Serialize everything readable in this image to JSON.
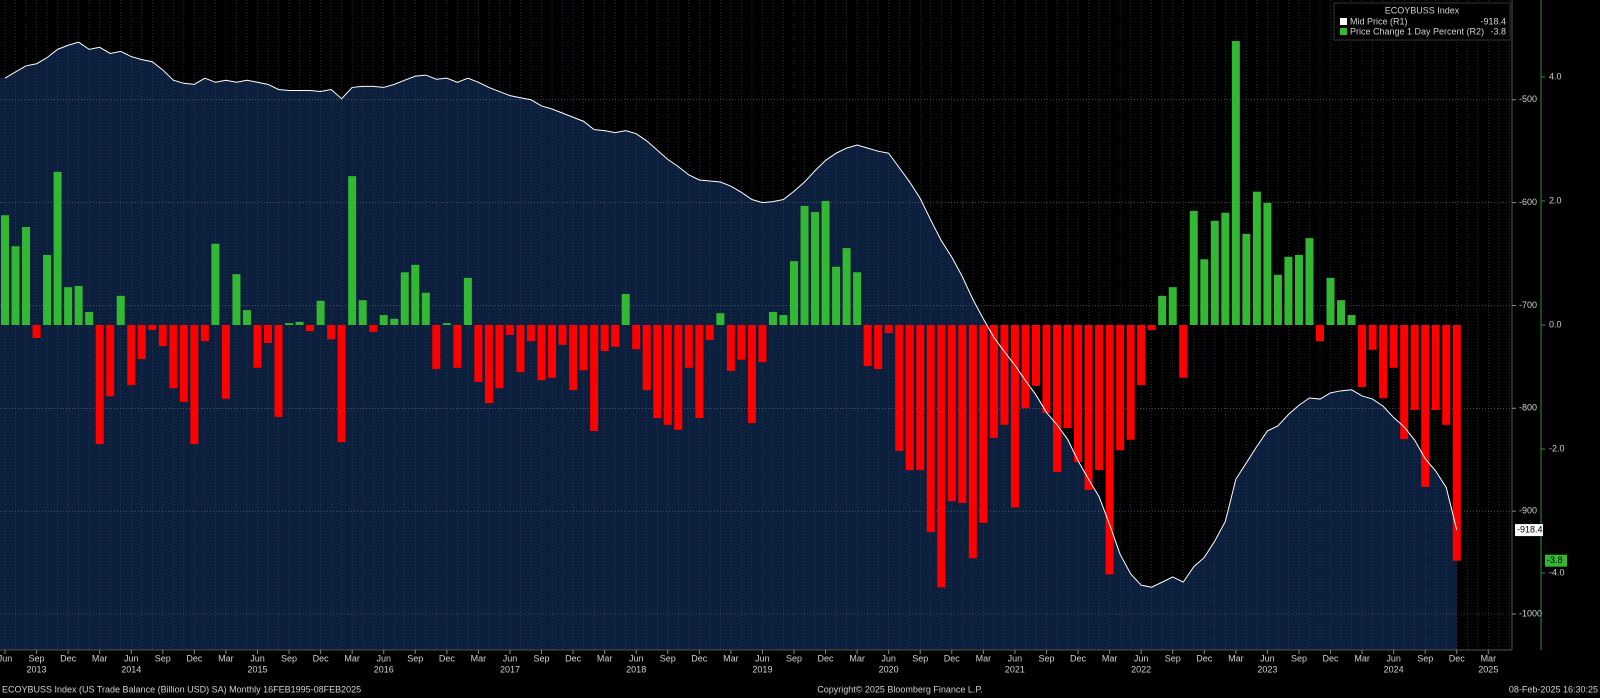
{
  "chart_data": {
    "type": "combo",
    "legend_title": "ECOYBUSS Index",
    "footer_left": "ECOYBUSS Index (US Trade Balance (Billion USD) SA)  Monthly 16FEB1995-08FEB2025",
    "footer_center": "Copyright© 2025 Bloomberg Finance L.P.",
    "footer_right": "08-Feb-2025 16:30:25",
    "categories": [
      "Jun",
      null,
      null,
      "Sep",
      null,
      null,
      "Dec",
      null,
      null,
      "Mar",
      null,
      null,
      "Jun",
      null,
      null,
      "Sep",
      null,
      null,
      "Dec",
      null,
      null,
      "Mar",
      null,
      null,
      "Jun",
      null,
      null,
      "Sep",
      null,
      null,
      "Dec",
      null,
      null,
      "Mar",
      null,
      null,
      "Jun",
      null,
      null,
      "Sep",
      null,
      null,
      "Dec",
      null,
      null,
      "Mar",
      null,
      null,
      "Jun",
      null,
      null,
      "Sep",
      null,
      null,
      "Dec",
      null,
      null,
      "Mar",
      null,
      null,
      "Jun",
      null,
      null,
      "Sep",
      null,
      null,
      "Dec",
      null,
      null,
      "Mar",
      null,
      null,
      "Jun",
      null,
      null,
      "Sep",
      null,
      null,
      "Dec",
      null,
      null,
      "Mar",
      null,
      null,
      "Jun",
      null,
      null,
      "Sep",
      null,
      null,
      "Dec",
      null,
      null,
      "Mar",
      null,
      null,
      "Jun",
      null,
      null,
      "Sep",
      null,
      null,
      "Dec",
      null,
      null,
      "Mar",
      null,
      null,
      "Jun",
      null,
      null,
      "Sep",
      null,
      null,
      "Dec",
      null,
      null,
      "Mar",
      null,
      null,
      "Jun",
      null,
      null,
      "Sep",
      null,
      null,
      "Dec",
      null,
      null,
      "Mar",
      null,
      null,
      "Jun",
      null,
      null,
      "Sep",
      null,
      null,
      "Dec",
      null,
      null,
      "Mar",
      null,
      null
    ],
    "category_years": [
      null,
      null,
      null,
      "2013",
      null,
      null,
      null,
      null,
      null,
      null,
      null,
      null,
      "2014",
      null,
      null,
      null,
      null,
      null,
      null,
      null,
      null,
      null,
      null,
      null,
      "2015",
      null,
      null,
      null,
      null,
      null,
      null,
      null,
      null,
      null,
      null,
      null,
      "2016",
      null,
      null,
      null,
      null,
      null,
      null,
      null,
      null,
      null,
      null,
      null,
      "2017",
      null,
      null,
      null,
      null,
      null,
      null,
      null,
      null,
      null,
      null,
      null,
      "2018",
      null,
      null,
      null,
      null,
      null,
      null,
      null,
      null,
      null,
      null,
      null,
      "2019",
      null,
      null,
      null,
      null,
      null,
      null,
      null,
      null,
      null,
      null,
      null,
      "2020",
      null,
      null,
      null,
      null,
      null,
      null,
      null,
      null,
      null,
      null,
      null,
      "2021",
      null,
      null,
      null,
      null,
      null,
      null,
      null,
      null,
      null,
      null,
      null,
      "2022",
      null,
      null,
      null,
      null,
      null,
      null,
      null,
      null,
      null,
      null,
      null,
      "2023",
      null,
      null,
      null,
      null,
      null,
      null,
      null,
      null,
      null,
      null,
      null,
      "2024",
      null,
      null,
      null,
      null,
      null,
      null,
      null,
      null,
      "2025",
      null,
      null
    ],
    "series": [
      {
        "name": "Mid Price  (R1)",
        "type": "area",
        "axis": "y",
        "color": "#ffffff",
        "fill": "#0c1f3d",
        "values": [
          -479,
          -473,
          -467,
          -465,
          -459,
          -451,
          -447,
          -444,
          -451,
          -449,
          -455,
          -453,
          -458,
          -461,
          -463,
          -471,
          -481,
          -484,
          -485,
          -479,
          -483,
          -481,
          -483,
          -481,
          -483,
          -485,
          -490,
          -491,
          -491,
          -491,
          -492,
          -490,
          -499,
          -488,
          -487,
          -487,
          -488,
          -485,
          -481,
          -477,
          -476,
          -480,
          -479,
          -483,
          -479,
          -483,
          -488,
          -492,
          -496,
          -498,
          -500,
          -506,
          -509,
          -513,
          -517,
          -521,
          -529,
          -530,
          -532,
          -530,
          -533,
          -540,
          -549,
          -558,
          -565,
          -573,
          -578,
          -579,
          -580,
          -584,
          -590,
          -597,
          -600,
          -599,
          -597,
          -589,
          -580,
          -569,
          -559,
          -552,
          -547,
          -544,
          -547,
          -550,
          -552,
          -566,
          -580,
          -596,
          -617,
          -637,
          -653,
          -672,
          -694,
          -713,
          -731,
          -745,
          -758,
          -773,
          -787,
          -804,
          -816,
          -830,
          -851,
          -869,
          -886,
          -913,
          -942,
          -961,
          -972,
          -974,
          -969,
          -964,
          -969,
          -954,
          -945,
          -929,
          -910,
          -869,
          -853,
          -837,
          -822,
          -817,
          -806,
          -797,
          -790,
          -791,
          -785,
          -783,
          -782,
          -788,
          -791,
          -798,
          -809,
          -818,
          -831,
          -849,
          -861,
          -877,
          -918.4,
          null,
          null,
          null,
          null,
          null
        ]
      },
      {
        "name": "Price Change 1 Day Percent  (R2)",
        "type": "bar",
        "axis": "y2",
        "color": "#33b833",
        "negative_color": "#ff0000",
        "values": [
          1.77,
          1.27,
          1.58,
          -0.21,
          1.13,
          2.47,
          0.61,
          0.63,
          0.21,
          -1.92,
          -1.15,
          0.47,
          -0.97,
          -0.55,
          -0.08,
          -0.34,
          -1.02,
          -1.24,
          -1.92,
          -0.26,
          1.31,
          -1.19,
          0.82,
          0.24,
          -0.69,
          -0.29,
          -1.48,
          0.03,
          0.05,
          -0.1,
          0.39,
          -0.23,
          -1.89,
          2.4,
          0.4,
          -0.11,
          0.16,
          0.1,
          0.85,
          0.97,
          0.52,
          -0.71,
          0.03,
          -0.69,
          0.76,
          -0.92,
          -1.26,
          -1.02,
          -0.16,
          -0.76,
          -0.26,
          -0.89,
          -0.85,
          -0.32,
          -1.05,
          -0.73,
          -1.71,
          -0.42,
          -0.35,
          0.5,
          -0.39,
          -1.05,
          -1.5,
          -1.61,
          -1.69,
          -0.69,
          -1.5,
          -0.24,
          0.19,
          -0.74,
          -0.56,
          -1.58,
          -0.6,
          0.21,
          0.16,
          1.03,
          1.92,
          1.82,
          2,
          0.94,
          1.24,
          0.85,
          -0.66,
          -0.71,
          -0.13,
          -2.03,
          -2.34,
          -2.34,
          -3.34,
          -4.23,
          -2.84,
          -2.87,
          -3.76,
          -3.19,
          -1.82,
          -1.61,
          -2.94,
          -1.34,
          -0.98,
          -1.42,
          -2.37,
          -1.66,
          -2.21,
          -2.66,
          -2.34,
          -4.02,
          -2.02,
          -1.85,
          -0.97,
          -0.08,
          0.47,
          0.61,
          -0.85,
          1.84,
          1.06,
          1.68,
          1.81,
          4.58,
          1.47,
          2.15,
          1.97,
          0.81,
          1.1,
          1.13,
          1.4,
          -0.26,
          0.76,
          0.4,
          0.16,
          -1,
          -0.4,
          -1.18,
          -0.69,
          -1.84,
          -1.37,
          -2.61,
          -1.37,
          -1.61,
          -3.8,
          null,
          null,
          null,
          null,
          null
        ]
      }
    ],
    "ylim": [
      -1035,
      -403
    ],
    "yticks": [
      -1000,
      -900,
      -800,
      -700,
      -600,
      -500
    ],
    "y2lim": [
      -5.24,
      5.24
    ],
    "y2ticks": [
      {
        "value": -4,
        "label": "-4.0"
      },
      {
        "value": -2,
        "label": "-2.0"
      },
      {
        "value": 0,
        "label": "0.0"
      },
      {
        "value": 2,
        "label": "2.0"
      },
      {
        "value": 4,
        "label": "4.0"
      }
    ],
    "grid": true
  }
}
